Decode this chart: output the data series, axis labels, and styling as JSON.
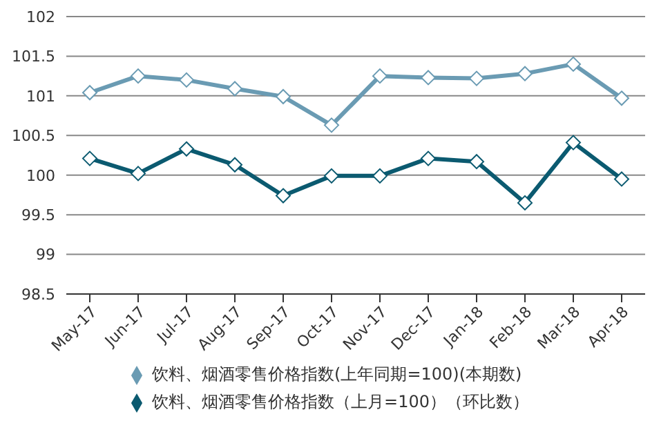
{
  "chart_data": {
    "type": "line",
    "categories": [
      "May-17",
      "Jun-17",
      "Jul-17",
      "Aug-17",
      "Sep-17",
      "Oct-17",
      "Nov-17",
      "Dec-17",
      "Jan-18",
      "Feb-18",
      "Mar-18",
      "Apr-18"
    ],
    "series": [
      {
        "name": "饮料、烟酒零售价格指数(上年同期=100)(本期数)",
        "color": "#6a9bb3",
        "values": [
          101.04,
          101.25,
          101.2,
          101.09,
          100.99,
          100.63,
          101.25,
          101.23,
          101.22,
          101.28,
          101.4,
          100.97
        ]
      },
      {
        "name": "饮料、烟酒零售价格指数（上月=100）（环比数）",
        "color": "#0b5a70",
        "values": [
          100.21,
          100.02,
          100.33,
          100.13,
          99.74,
          99.99,
          99.99,
          100.21,
          100.17,
          99.65,
          100.41,
          99.95
        ]
      }
    ],
    "ylim": [
      98.5,
      102
    ],
    "yticks": [
      98.5,
      99,
      99.5,
      100,
      100.5,
      101,
      101.5,
      102
    ],
    "grid": "y",
    "legend": "bottom",
    "marker": "diamond",
    "line_style": "solid"
  }
}
